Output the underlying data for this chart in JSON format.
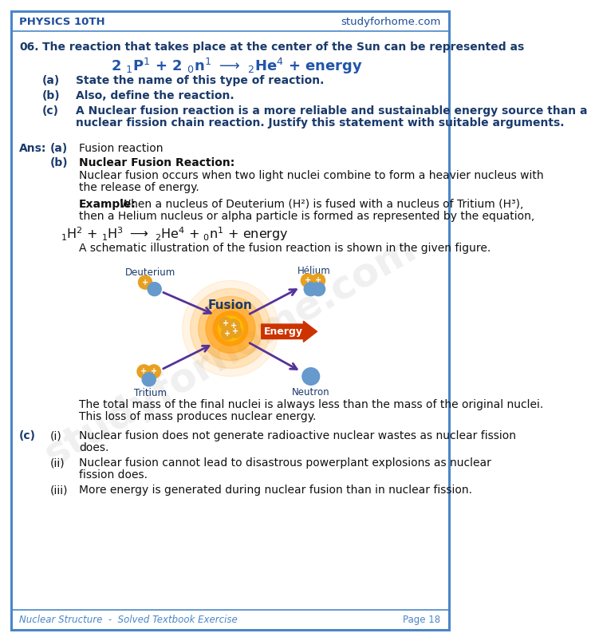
{
  "bg_color": "#ffffff",
  "border_color": "#4a86c8",
  "blue_dark": "#1a3a6b",
  "blue_mid": "#2255aa",
  "blue_light": "#4a86c8",
  "blue_header": "#1e4d9b",
  "header_text_left": "PHYSICS 10TH",
  "header_text_right": "studyforhome.com",
  "footer_text_left": "Nuclear Structure  -  Solved Textbook Exercise",
  "footer_text_right": "Page 18",
  "q_number": "06.",
  "q_text": "The reaction that takes place at the center of the Sun can be represented as",
  "sub_a_q": "State the name of this type of reaction.",
  "sub_b_q": "Also, define the reaction.",
  "sub_c_q_line1": "A Nuclear fusion reaction is a more reliable and sustainable energy source than a",
  "sub_c_q_line2": "nuclear fission chain reaction. Justify this statement with suitable arguments.",
  "ans_a_text": "Fusion reaction",
  "ans_b_title": "Nuclear Fusion Reaction:",
  "ans_b_line1": "Nuclear fusion occurs when two light nuclei combine to form a heavier nucleus with",
  "ans_b_line2": "the release of energy.",
  "ex_line1": " When a nucleus of Deuterium (H²) is fused with a nucleus of Tritium (H³),",
  "ex_line2": "then a Helium nucleus or alpha particle is formed as represented by the equation,",
  "ans_b_figure_text": "A schematic illustration of the fusion reaction is shown in the given figure.",
  "mass_line1": "The total mass of the final nuclei is always less than the mass of the original nuclei.",
  "mass_line2": "This loss of mass produces nuclear energy.",
  "c_i_line1": "Nuclear fusion does not generate radioactive nuclear wastes as nuclear fission",
  "c_i_line2": "does.",
  "c_ii_line1": "Nuclear fusion cannot lead to disastrous powerplant explosions as nuclear",
  "c_ii_line2": "fission does.",
  "c_iii_line1": "More energy is generated during nuclear fusion than in nuclear fission.",
  "proton_color": "#e8a020",
  "neutron_color": "#6699cc",
  "glow_color": "#ff8800",
  "arrow_color": "#553399",
  "energy_arrow_color": "#cc3300",
  "watermark_text": "studyforhome.com",
  "watermark_alpha": 0.12
}
